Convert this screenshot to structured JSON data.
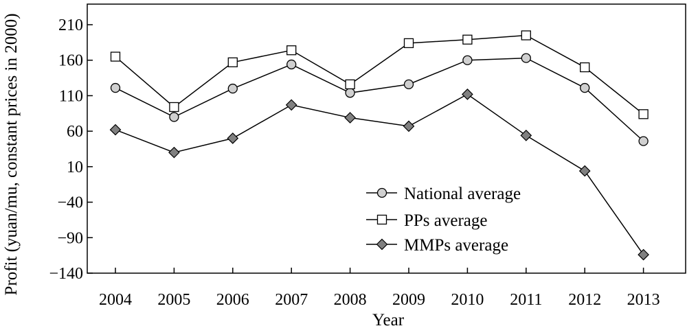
{
  "chart_data": {
    "type": "line",
    "title": "",
    "xlabel": "Year",
    "ylabel": "Profit (yuan/mu, constant prices in 2000)",
    "categories": [
      "2004",
      "2005",
      "2006",
      "2007",
      "2008",
      "2009",
      "2010",
      "2011",
      "2012",
      "2013"
    ],
    "yticks": [
      210,
      160,
      110,
      60,
      10,
      -40,
      -90,
      -140
    ],
    "ylim": [
      -140,
      230
    ],
    "grid": false,
    "legend_position": "lower-right",
    "series": [
      {
        "name": "National average",
        "marker": "circle",
        "marker_fill": "#d0d0d0",
        "values": [
          121,
          80,
          120,
          154,
          114,
          126,
          160,
          163,
          121,
          46
        ]
      },
      {
        "name": "PPs average",
        "marker": "square",
        "marker_fill": "#ffffff",
        "values": [
          165,
          94,
          157,
          174,
          126,
          184,
          189,
          195,
          150,
          84
        ]
      },
      {
        "name": "MMPs average",
        "marker": "diamond",
        "marker_fill": "#808080",
        "values": [
          62,
          30,
          50,
          97,
          79,
          67,
          112,
          54,
          4,
          -114
        ]
      }
    ]
  }
}
